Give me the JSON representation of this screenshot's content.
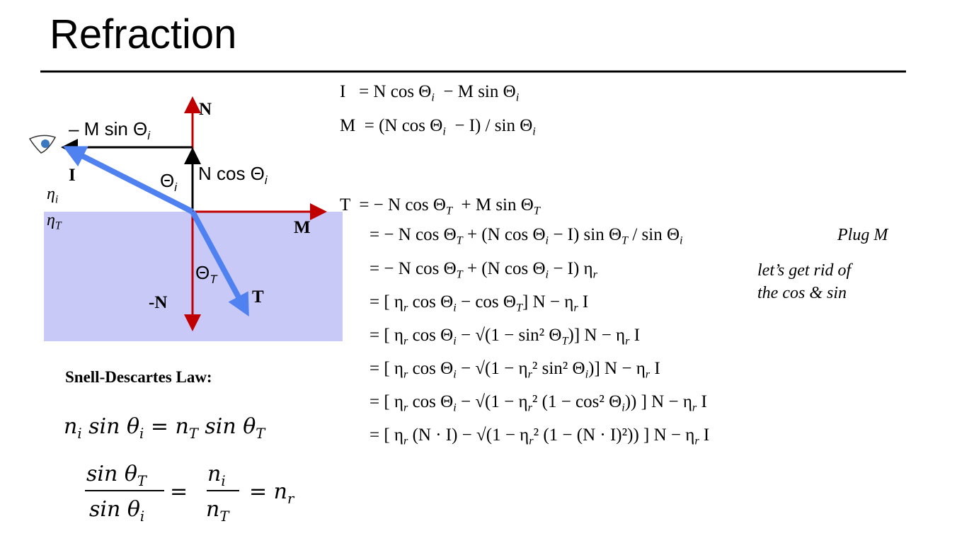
{
  "title": "Refraction",
  "diagram": {
    "labels": {
      "n": [
        "N"
      ],
      "minus_m_sin": [
        "– M sin Θ",
        "i"
      ],
      "i": [
        "I"
      ],
      "theta_i": [
        "Θ",
        "i"
      ],
      "n_cos": [
        "N cos Θ",
        "i"
      ],
      "eta_i": [
        "η",
        "i"
      ],
      "eta_t": [
        "η",
        "T"
      ],
      "m": [
        "M"
      ],
      "theta_t": [
        "Θ",
        "T"
      ],
      "t": [
        "T"
      ],
      "minus_n": [
        "-N"
      ]
    }
  },
  "equations": [
    [
      "I   = N cos Θ",
      "i",
      "  − M sin Θ",
      "i"
    ],
    [
      "M  = (N cos Θ",
      "i",
      "  − I) / sin Θ",
      "i"
    ],
    [
      "T  = − N cos Θ",
      "T",
      "  + M sin Θ",
      "T"
    ],
    [
      "= − N cos Θ",
      "T",
      " + (N cos Θ",
      "i",
      " − I) sin Θ",
      "T",
      " / sin Θ",
      "i"
    ],
    [
      "= − N cos Θ",
      "T",
      " + (N cos Θ",
      "i",
      " − I) η",
      "r"
    ],
    [
      "= [ η",
      "r",
      " cos Θ",
      "i",
      " − cos Θ",
      "T",
      "] N − η",
      "r",
      " I"
    ],
    [
      "= [ η",
      "r",
      " cos Θ",
      "i",
      " − √(1 − sin² Θ",
      "T",
      ")] N − η",
      "r",
      " I"
    ],
    [
      "= [ η",
      "r",
      " cos Θ",
      "i",
      " − √(1 − η",
      "r",
      "² sin² Θ",
      "i",
      ")] N − η",
      "r",
      " I"
    ],
    [
      "= [ η",
      "r",
      " cos Θ",
      "i",
      " − √(1 − η",
      "r",
      "² (1 − cos² Θ",
      "i",
      ")) ] N − η",
      "r",
      " I"
    ],
    [
      "= [ η",
      "r",
      " (N · I) − √(1 − η",
      "r",
      "² (1 − (N · I)²)) ] N − η",
      "r",
      " I"
    ]
  ],
  "notes": [
    "Plug M",
    "let’s get rid of",
    "the cos & sin"
  ],
  "snell": {
    "heading": "Snell-Descartes Law:",
    "equation": [
      "n",
      "i",
      " sin θ",
      "i",
      " = n",
      "T",
      " sin θ",
      "T"
    ],
    "numerator": [
      "sin θ",
      "T"
    ],
    "denominator": [
      "sin θ",
      "i"
    ],
    "middle_numerator": [
      "n",
      "i"
    ],
    "middle_denominator": [
      "n",
      "T"
    ],
    "result": [
      "= n",
      "r"
    ]
  }
}
